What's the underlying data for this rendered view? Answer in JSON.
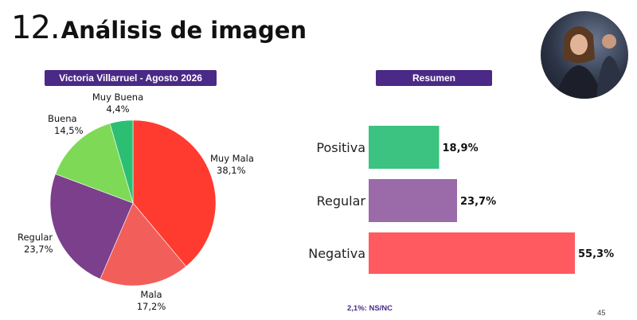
{
  "header": {
    "number": "12.",
    "title": "Análisis de imagen"
  },
  "pills": {
    "left": "Victoria Villarruel - Agosto 2026",
    "right": "Resumen"
  },
  "chart_data": [
    {
      "type": "pie",
      "title": "Victoria Villarruel - Agosto 2026",
      "slices": [
        {
          "label": "Muy Mala",
          "value": 38.1,
          "display": "38,1%",
          "color": "#ff3b30"
        },
        {
          "label": "Mala",
          "value": 17.2,
          "display": "17,2%",
          "color": "#f25e5a"
        },
        {
          "label": "Regular",
          "value": 23.7,
          "display": "23,7%",
          "color": "#7b3f8c"
        },
        {
          "label": "Buena",
          "value": 14.5,
          "display": "14,5%",
          "color": "#7ed957"
        },
        {
          "label": "Muy Buena",
          "value": 4.4,
          "display": "4,4%",
          "color": "#2cbf74"
        }
      ]
    },
    {
      "type": "bar",
      "orientation": "horizontal",
      "title": "Resumen",
      "categories": [
        "Positiva",
        "Regular",
        "Negativa"
      ],
      "values": [
        18.9,
        23.7,
        55.3
      ],
      "display": [
        "18,9%",
        "23,7%",
        "55,3%"
      ],
      "colors": [
        "#3cc281",
        "#9a6ba8",
        "#ff5a5f"
      ]
    }
  ],
  "footnote": "2,1%: NS/NC",
  "page_number": "45"
}
